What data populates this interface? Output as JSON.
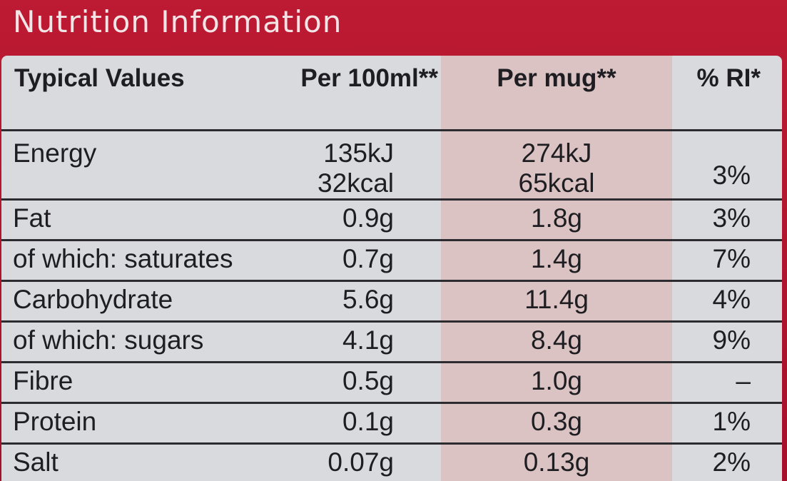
{
  "title": "Nutrition Information",
  "headers": {
    "typical": "Typical Values",
    "per100": "Per 100ml**",
    "permug": "Per mug**",
    "ri": "% RI*"
  },
  "energy": {
    "label": "Energy",
    "per100_kj": "135kJ",
    "per100_kcal": "32kcal",
    "permug_kj": "274kJ",
    "permug_kcal": "65kcal",
    "ri": "3%"
  },
  "rows": [
    {
      "label": "Fat",
      "per100": "0.9g",
      "permug": "1.8g",
      "ri": "3%"
    },
    {
      "label": "of which: saturates",
      "per100": "0.7g",
      "permug": "1.4g",
      "ri": "7%"
    },
    {
      "label": "Carbohydrate",
      "per100": "5.6g",
      "permug": "11.4g",
      "ri": "4%"
    },
    {
      "label": "of which: sugars",
      "per100": "4.1g",
      "permug": "8.4g",
      "ri": "9%"
    },
    {
      "label": "Fibre",
      "per100": "0.5g",
      "permug": "1.0g",
      "ri": "–"
    },
    {
      "label": "Protein",
      "per100": "0.1g",
      "permug": "0.3g",
      "ri": "1%"
    },
    {
      "label": "Salt",
      "per100": "0.07g",
      "permug": "0.13g",
      "ri": "2%"
    }
  ],
  "colors": {
    "frame": "#b8102a",
    "panel": "#d9dadd",
    "mug_band": "#dcc3c3",
    "rule": "#2b2b30"
  }
}
